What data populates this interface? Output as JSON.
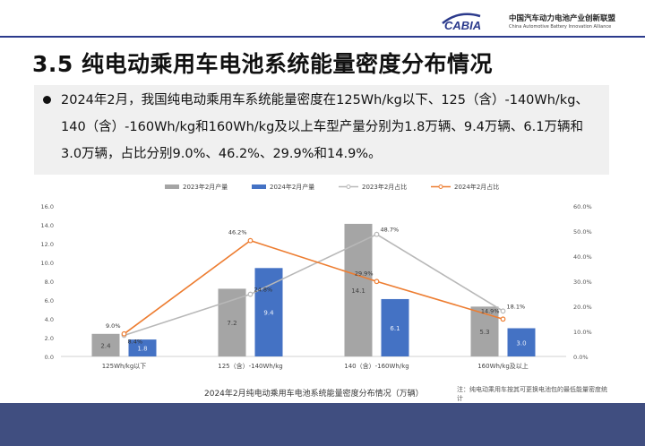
{
  "header": {
    "logo_text": "CABIA",
    "org_name_cn": "中国汽车动力电池产业创新联盟",
    "org_name_en": "China Automotive Battery Innovation Alliance"
  },
  "slide_title": "3.5 纯电动乘用车电池系统能量密度分布情况",
  "summary": "2024年2月，我国纯电动乘用车系统能量密度在125Wh/kg以下、125（含）-140Wh/kg、140（含）-160Wh/kg和160Wh/kg及以上车型产量分别为1.8万辆、9.4万辆、6.1万辆和3.0万辆，占比分别9.0%、46.2%、29.9%和14.9%。",
  "chart_data": {
    "type": "bar",
    "categories": [
      "125Wh/kg以下",
      "125（含）-140Wh/kg",
      "140（含）-160Wh/kg",
      "160Wh/kg及以上"
    ],
    "series": [
      {
        "name": "2023年2月产量",
        "type": "bar",
        "axis": "left",
        "color": "#a5a5a5",
        "values": [
          2.4,
          7.2,
          14.1,
          5.3
        ]
      },
      {
        "name": "2024年2月产量",
        "type": "bar",
        "axis": "left",
        "color": "#4472c4",
        "values": [
          1.8,
          9.4,
          6.1,
          3.0
        ]
      },
      {
        "name": "2023年2月占比",
        "type": "line",
        "axis": "right",
        "color": "#b8b8b8",
        "values": [
          8.4,
          24.8,
          48.7,
          18.1
        ]
      },
      {
        "name": "2024年2月占比",
        "type": "line",
        "axis": "right",
        "color": "#ed7d31",
        "values": [
          9.0,
          46.2,
          29.9,
          14.9
        ]
      }
    ],
    "y_left": {
      "min": 0,
      "max": 16,
      "step": 2,
      "ticks": [
        "0.0",
        "2.0",
        "4.0",
        "6.0",
        "8.0",
        "10.0",
        "12.0",
        "14.0",
        "16.0"
      ]
    },
    "y_right": {
      "min": 0,
      "max": 60,
      "step": 10,
      "ticks": [
        "0.0%",
        "10.0%",
        "20.0%",
        "30.0%",
        "40.0%",
        "50.0%",
        "60.0%"
      ]
    },
    "legend_position": "top",
    "grid": false
  },
  "caption": "2024年2月纯电动乘用车电池系统能量密度分布情况（万辆）",
  "note": "注：纯电动乘用车按其可更换电池包的最低能量密度统计"
}
